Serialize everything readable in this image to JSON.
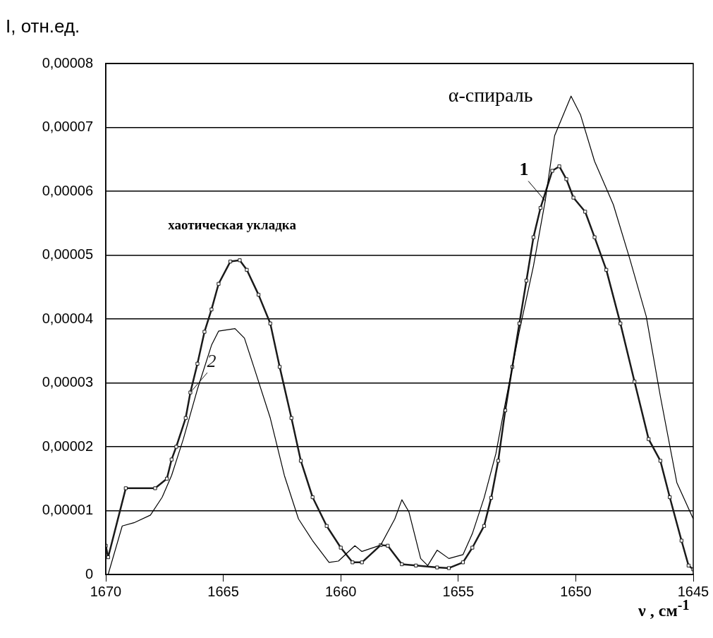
{
  "chart_data": {
    "type": "line",
    "xlabel": "ν , см$^{-1}$",
    "ylabel": "I, отн.ед.",
    "xlim": [
      1670,
      1645
    ],
    "xticks": [
      1670,
      1665,
      1660,
      1655,
      1650,
      1645
    ],
    "ylim": [
      0,
      8e-05
    ],
    "yticks": [
      {
        "value": 0,
        "label": "0"
      },
      {
        "value": 1e-05,
        "label": "0,00001"
      },
      {
        "value": 2e-05,
        "label": "0,00002"
      },
      {
        "value": 3e-05,
        "label": "0,00003"
      },
      {
        "value": 4e-05,
        "label": "0,00004"
      },
      {
        "value": 5e-05,
        "label": "0,00005"
      },
      {
        "value": 6e-05,
        "label": "0,00006"
      },
      {
        "value": 7e-05,
        "label": "0,00007"
      },
      {
        "value": 8e-05,
        "label": "0,00008"
      }
    ],
    "grid": "y",
    "legend": false,
    "line_style": "solid",
    "annotations": [
      "α-спираль",
      "хаотическая укладка"
    ],
    "series": [
      {
        "name": "1",
        "color": "#000000",
        "marker": "none",
        "x": [
          1669.9,
          1669.3,
          1668.8,
          1668.1,
          1667.6,
          1667.2,
          1666.7,
          1666.1,
          1665.5,
          1665.2,
          1664.5,
          1664.1,
          1663.7,
          1663.0,
          1662.4,
          1661.8,
          1661.2,
          1660.5,
          1660.1,
          1659.4,
          1659.1,
          1658.3,
          1657.7,
          1657.4,
          1657.1,
          1656.6,
          1656.3,
          1655.9,
          1655.4,
          1654.8,
          1654.4,
          1653.9,
          1653.4,
          1653.0,
          1652.4,
          1651.8,
          1651.3,
          1650.9,
          1650.2,
          1649.8,
          1649.2,
          1648.4,
          1647.7,
          1647.0,
          1646.4,
          1645.7,
          1645.0
        ],
        "values": [
          0,
          7.6e-06,
          8.1e-06,
          9.3e-06,
          1.21e-05,
          1.55e-05,
          2.12e-05,
          2.9e-05,
          3.59e-05,
          3.81e-05,
          3.85e-05,
          3.7e-05,
          3.25e-05,
          2.45e-05,
          1.55e-05,
          8.7e-06,
          5.3e-06,
          1.9e-06,
          2.1e-06,
          4.5e-06,
          3.6e-06,
          4.6e-06,
          8.7e-06,
          1.17e-05,
          9.8e-06,
          2.5e-06,
          1.4e-06,
          3.8e-06,
          2.5e-06,
          3.1e-06,
          6.4e-06,
          1.2e-05,
          1.89e-05,
          2.68e-05,
          3.81e-05,
          4.83e-05,
          5.85e-05,
          6.87e-05,
          7.49e-05,
          7.2e-05,
          6.47e-05,
          5.79e-05,
          4.94e-05,
          4.04e-05,
          2.79e-05,
          1.44e-05,
          8.7e-06
        ]
      },
      {
        "name": "2",
        "color": "#1a1a1a",
        "marker": "square",
        "x": [
          1670.0,
          1669.9,
          1669.15,
          1667.9,
          1667.4,
          1667.2,
          1667.0,
          1666.6,
          1666.4,
          1666.1,
          1665.8,
          1665.5,
          1665.2,
          1664.7,
          1664.3,
          1664.0,
          1663.5,
          1663.0,
          1662.6,
          1662.1,
          1661.7,
          1661.2,
          1660.6,
          1660.0,
          1659.5,
          1659.1,
          1658.3,
          1658.0,
          1657.4,
          1656.8,
          1655.9,
          1655.4,
          1654.8,
          1654.4,
          1653.9,
          1653.6,
          1653.3,
          1653.0,
          1652.7,
          1652.4,
          1652.1,
          1651.8,
          1651.5,
          1651.0,
          1650.7,
          1650.4,
          1650.1,
          1649.6,
          1649.2,
          1648.7,
          1648.1,
          1647.5,
          1646.9,
          1646.4,
          1646.0,
          1645.5,
          1645.2,
          1645.0
        ],
        "values": [
          4.5e-06,
          2.7e-06,
          1.35e-05,
          1.35e-05,
          1.5e-05,
          1.8e-05,
          2e-05,
          2.45e-05,
          2.85e-05,
          3.3e-05,
          3.8e-05,
          4.15e-05,
          4.55e-05,
          4.9e-05,
          4.92e-05,
          4.77e-05,
          4.38e-05,
          3.93e-05,
          3.25e-05,
          2.45e-05,
          1.78e-05,
          1.21e-05,
          7.6e-06,
          4.2e-06,
          1.9e-06,
          1.9e-06,
          4.6e-06,
          4.5e-06,
          1.6e-06,
          1.4e-06,
          1.1e-06,
          1e-06,
          1.9e-06,
          4.2e-06,
          7.6e-06,
          1.2e-05,
          1.78e-05,
          2.57e-05,
          3.25e-05,
          3.93e-05,
          4.6e-05,
          5.28e-05,
          5.74e-05,
          6.32e-05,
          6.39e-05,
          6.19e-05,
          5.9e-05,
          5.68e-05,
          5.28e-05,
          4.77e-05,
          3.93e-05,
          3.02e-05,
          2.12e-05,
          1.78e-05,
          1.21e-05,
          5.3e-06,
          1.4e-06,
          8e-07
        ]
      }
    ]
  }
}
